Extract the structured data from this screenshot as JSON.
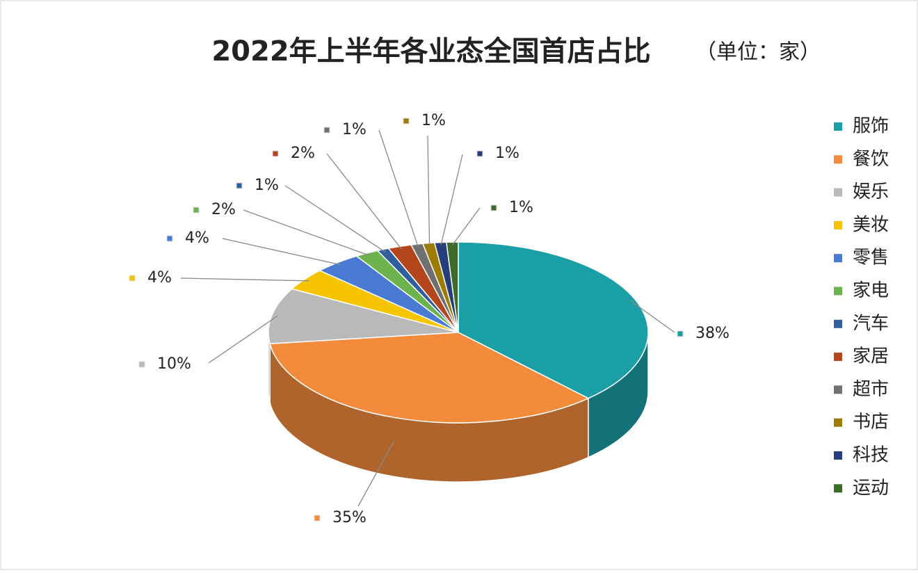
{
  "chart_data": {
    "type": "pie3d",
    "title": "2022年上半年各业态全国首店占比",
    "subtitle": "（单位：家）",
    "categories": [
      "服饰",
      "餐饮",
      "娱乐",
      "美妆",
      "零售",
      "家电",
      "汽车",
      "家居",
      "超市",
      "书店",
      "科技",
      "运动"
    ],
    "values": [
      38,
      35,
      10,
      4,
      4,
      2,
      1,
      2,
      1,
      1,
      1,
      1
    ],
    "value_labels": [
      "38%",
      "35%",
      "10%",
      "4%",
      "4%",
      "2%",
      "1%",
      "2%",
      "1%",
      "1%",
      "1%",
      "1%"
    ],
    "colors": [
      "#1a9fa6",
      "#f28b3c",
      "#b9b9b9",
      "#f6c400",
      "#4a7bd2",
      "#6cb24d",
      "#2f5f9f",
      "#b4461d",
      "#707070",
      "#9c7c05",
      "#263f7c",
      "#3e6b2b"
    ],
    "legend": "right"
  }
}
